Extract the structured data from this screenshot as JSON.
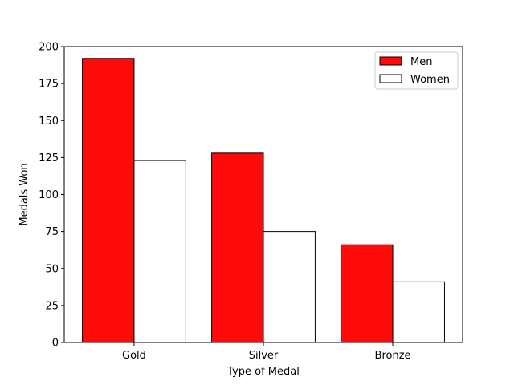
{
  "chart_data": {
    "type": "bar",
    "title": "",
    "xlabel": "Type of Medal",
    "ylabel": "Medals Won",
    "categories": [
      "Gold",
      "Silver",
      "Bronze"
    ],
    "ylim": [
      0,
      200
    ],
    "yticks": [
      0,
      25,
      50,
      75,
      100,
      125,
      150,
      175,
      200
    ],
    "grid": false,
    "legend": {
      "position": "top-right"
    },
    "series": [
      {
        "name": "Men",
        "values": [
          192,
          128,
          66
        ],
        "color": "#ff0a0a"
      },
      {
        "name": "Women",
        "values": [
          123,
          75,
          41
        ],
        "color": "#ffffff"
      }
    ]
  }
}
